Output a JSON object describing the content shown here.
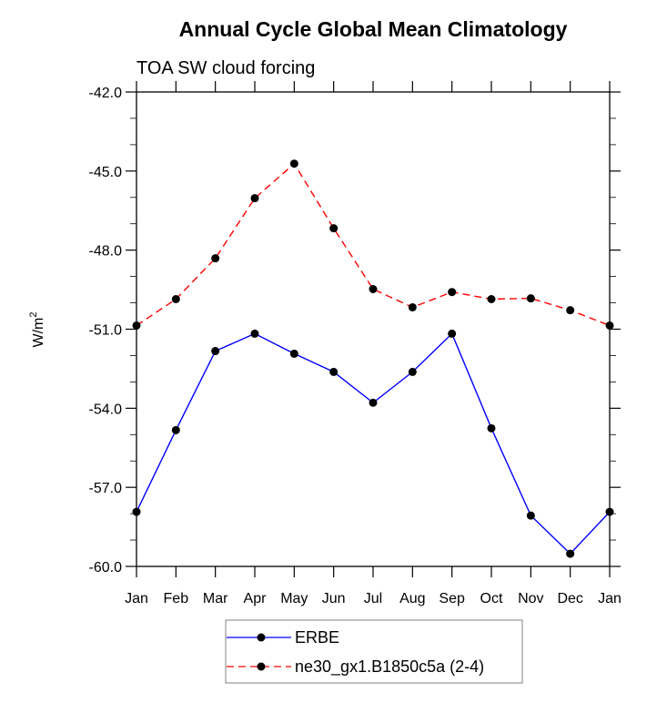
{
  "chart_data": {
    "type": "line",
    "title": "Annual Cycle Global Mean Climatology",
    "subtitle": "TOA SW cloud forcing",
    "xlabel": "",
    "ylabel": "W/m",
    "ylabel_superscript": "2",
    "categories": [
      "Jan",
      "Feb",
      "Mar",
      "Apr",
      "May",
      "Jun",
      "Jul",
      "Aug",
      "Sep",
      "Oct",
      "Nov",
      "Dec",
      "Jan"
    ],
    "ylim": [
      -60.0,
      -42.0
    ],
    "yticks": [
      -42.0,
      -45.0,
      -48.0,
      -51.0,
      -54.0,
      -57.0,
      -60.0
    ],
    "ytick_labels": [
      "-42.0",
      "-45.0",
      "-48.0",
      "-51.0",
      "-54.0",
      "-57.0",
      "-60.0"
    ],
    "y_minor_step": 1.0,
    "grid": false,
    "legend_position": "bottom-center",
    "series": [
      {
        "name": "ERBE",
        "color": "#0000ff",
        "style": "solid",
        "marker": "filled-circle",
        "marker_color": "#000000",
        "values": [
          -57.93,
          -54.83,
          -51.83,
          -51.17,
          -51.93,
          -52.62,
          -53.79,
          -52.62,
          -51.17,
          -54.76,
          -58.07,
          -59.52,
          -57.93
        ]
      },
      {
        "name": "ne30_gx1.B1850c5a (2-4)",
        "color": "#ff0000",
        "style": "dashed",
        "marker": "filled-circle",
        "marker_color": "#000000",
        "values": [
          -50.86,
          -49.86,
          -48.31,
          -46.03,
          -44.72,
          -47.17,
          -49.48,
          -50.17,
          -49.59,
          -49.86,
          -49.83,
          -50.28,
          -50.86
        ]
      }
    ]
  }
}
